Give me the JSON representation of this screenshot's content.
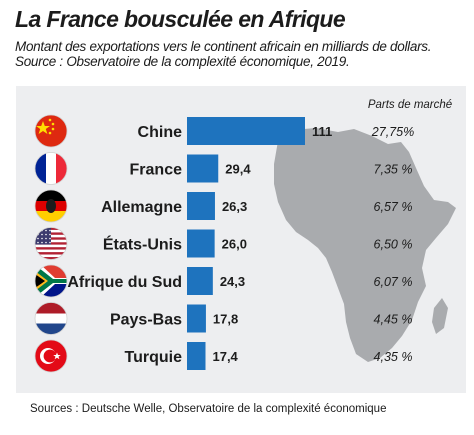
{
  "title": "La France bousculée en Afrique",
  "subtitle_line1": "Montant des exportations vers le continent africain en milliards de dollars.",
  "subtitle_line2": "Source : Observatoire de la complexité économique, 2019.",
  "footer": "Sources : Deutsche Welle, Observatoire de la complexité économique",
  "colors": {
    "bar": "#1e73be",
    "panel": "#edeef0",
    "map": "#a9abae"
  },
  "chart_data": {
    "type": "bar",
    "orientation": "horizontal",
    "categories": [
      "Chine",
      "France",
      "Allemagne",
      "États-Unis",
      "Afrique du Sud",
      "Pays-Bas",
      "Turquie"
    ],
    "values": [
      111,
      29.4,
      26.3,
      26.0,
      24.3,
      17.8,
      17.4
    ],
    "value_labels": [
      "111",
      "29,4",
      "26,3",
      "26,0",
      "24,3",
      "17,8",
      "17,4"
    ],
    "share_header": "Parts de marché",
    "shares": [
      "27,75%",
      "7,35 %",
      "6,57 %",
      "6,50 %",
      "6,07 %",
      "4,45 %",
      "4,35 %"
    ],
    "flags": [
      "china-flag-icon",
      "france-flag-icon",
      "germany-flag-icon",
      "usa-flag-icon",
      "south-africa-flag-icon",
      "netherlands-flag-icon",
      "turkey-flag-icon"
    ],
    "title": "La France bousculée en Afrique",
    "xlabel": "",
    "ylabel": "",
    "xlim": [
      0,
      111
    ]
  }
}
